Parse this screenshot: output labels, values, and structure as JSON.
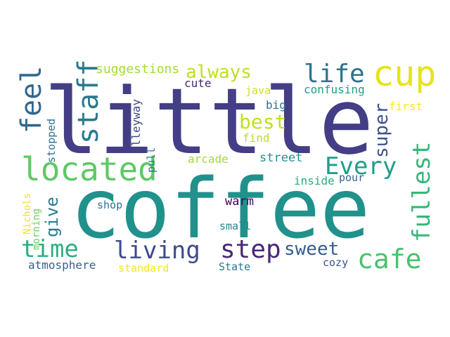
{
  "words": [
    {
      "text": "little",
      "color": "#433e85",
      "vertical": false
    },
    {
      "text": "coffee",
      "color": "#21918c",
      "vertical": false
    },
    {
      "text": "cup",
      "color": "#e5e419",
      "vertical": false
    },
    {
      "text": "located",
      "color": "#5ec962",
      "vertical": false
    },
    {
      "text": "feel",
      "color": "#31688e",
      "vertical": true
    },
    {
      "text": "staff",
      "color": "#2a788e",
      "vertical": true
    },
    {
      "text": "always",
      "color": "#bddf26",
      "vertical": false
    },
    {
      "text": "life",
      "color": "#2c728e",
      "vertical": false
    },
    {
      "text": "fullest",
      "color": "#35b779",
      "vertical": true
    },
    {
      "text": "Every",
      "color": "#1f9e89",
      "vertical": false
    },
    {
      "text": "best",
      "color": "#c2df23",
      "vertical": false
    },
    {
      "text": "super",
      "color": "#3b528b",
      "vertical": true
    },
    {
      "text": "time",
      "color": "#29af7f",
      "vertical": false
    },
    {
      "text": "living",
      "color": "#3e4a89",
      "vertical": false
    },
    {
      "text": "step",
      "color": "#482878",
      "vertical": false
    },
    {
      "text": "sweet",
      "color": "#365d8d",
      "vertical": false
    },
    {
      "text": "cafe",
      "color": "#4ac16d",
      "vertical": false
    },
    {
      "text": "give",
      "color": "#287d8e",
      "vertical": true
    },
    {
      "text": "suggestions",
      "color": "#a5db36",
      "vertical": false
    },
    {
      "text": "cute",
      "color": "#482475",
      "vertical": false
    },
    {
      "text": "confusing",
      "color": "#1fa187",
      "vertical": false
    },
    {
      "text": "java",
      "color": "#d0e11c",
      "vertical": false
    },
    {
      "text": "big",
      "color": "#2d708e",
      "vertical": false
    },
    {
      "text": "first",
      "color": "#fde725",
      "vertical": false
    },
    {
      "text": "find",
      "color": "#b5de2b",
      "vertical": false
    },
    {
      "text": "alleyway",
      "color": "#3f4889",
      "vertical": true
    },
    {
      "text": "stopped",
      "color": "#2c728e",
      "vertical": true
    },
    {
      "text": "pull",
      "color": "#2a788e",
      "vertical": true
    },
    {
      "text": "arcade",
      "color": "#a2da37",
      "vertical": false
    },
    {
      "text": "street",
      "color": "#20928c",
      "vertical": false
    },
    {
      "text": "inside",
      "color": "#26ad81",
      "vertical": false
    },
    {
      "text": "pour",
      "color": "#33638d",
      "vertical": false
    },
    {
      "text": "Nichols",
      "color": "#f1e51d",
      "vertical": true
    },
    {
      "text": "morning",
      "color": "#6ece58",
      "vertical": true
    },
    {
      "text": "shop",
      "color": "#2e6f8e",
      "vertical": false
    },
    {
      "text": "warm",
      "color": "#440154",
      "vertical": false
    },
    {
      "text": "small",
      "color": "#25848e",
      "vertical": false
    },
    {
      "text": "atmosphere",
      "color": "#355f8d",
      "vertical": false
    },
    {
      "text": "standard",
      "color": "#f6e620",
      "vertical": false
    },
    {
      "text": "State",
      "color": "#2a788e",
      "vertical": false
    },
    {
      "text": "cozy",
      "color": "#3a548c",
      "vertical": false
    }
  ]
}
